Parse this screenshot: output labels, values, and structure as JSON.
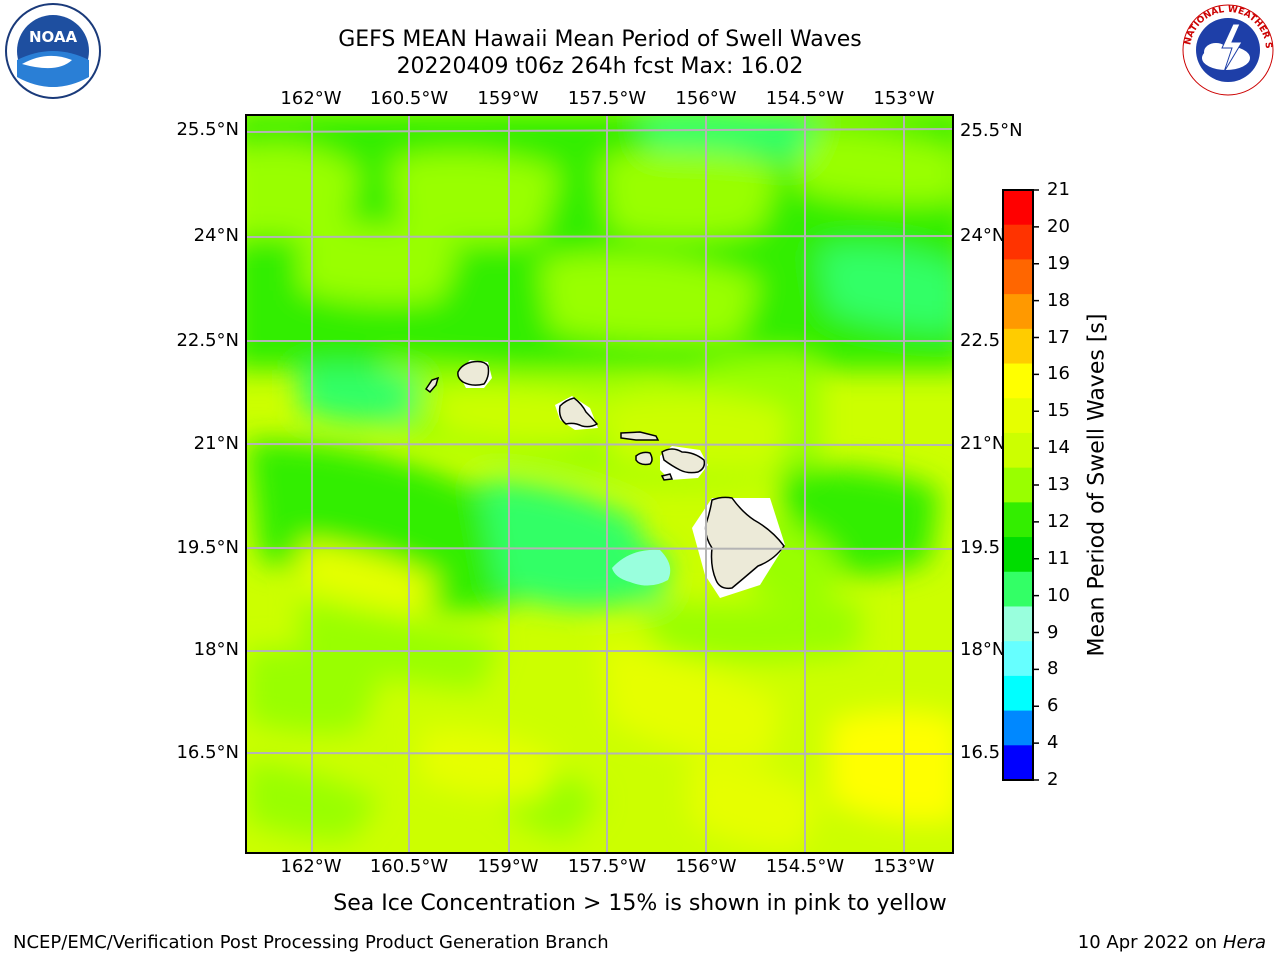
{
  "title": {
    "line1": "GEFS MEAN Hawaii Mean Period of Swell Waves",
    "line2": "20220409 t06z 264h fcst   Max: 16.02"
  },
  "map": {
    "lon_labels": [
      "162°W",
      "160.5°W",
      "159°W",
      "157.5°W",
      "156°W",
      "154.5°W",
      "153°W"
    ],
    "lat_labels_left": [
      "25.5°N",
      "24°N",
      "22.5°N",
      "21°N",
      "19.5°N",
      "18°N",
      "16.5°N"
    ],
    "lat_labels_right": [
      "25.5°N",
      "24°N",
      "22.5",
      "21°N",
      "19.5",
      "18°N",
      "16.5"
    ],
    "land_color": "#ecead8",
    "grid_color": "#b4b4b4"
  },
  "colorbar": {
    "label": "Mean Period of Swell Waves [s]",
    "ticks": [
      "21",
      "20",
      "19",
      "18",
      "17",
      "16",
      "15",
      "14",
      "13",
      "12",
      "11",
      "10",
      "9",
      "8",
      "6",
      "4",
      "2"
    ],
    "colors": [
      "#ff0000",
      "#ff3300",
      "#ff6600",
      "#ff9900",
      "#ffcc00",
      "#ffff00",
      "#e6ff00",
      "#ccff00",
      "#99ff00",
      "#33ee00",
      "#00dd00",
      "#33ff66",
      "#99ffdd",
      "#66ffff",
      "#00ffff",
      "#0088ff",
      "#0000ff"
    ]
  },
  "subtitle": "Sea Ice Concentration > 15% is shown in pink to yellow",
  "footer": {
    "left": "NCEP/EMC/Verification Post Processing Product Generation Branch",
    "date": "10 Apr 2022 on ",
    "machine": "Hera"
  },
  "logos": {
    "noaa_text": "NOAA",
    "nws_text": "NATIONAL WEATHER SERVICE"
  }
}
